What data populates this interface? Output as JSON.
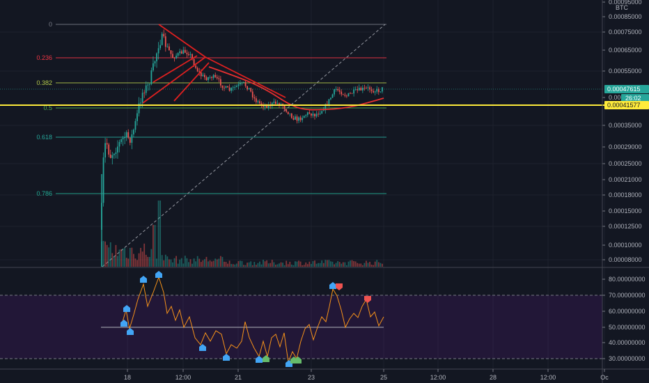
{
  "chart_data": [
    {
      "type": "candlestick",
      "quote_currency": "BTC",
      "x_tick_labels": [
        "18",
        "12:00",
        "21",
        "23",
        "25",
        "12:00",
        "28",
        "12:00",
        "Oc"
      ],
      "y_tick_labels": [
        "0.00095000",
        "0.00085000",
        "0.00075000",
        "0.00065000",
        "0.00055000",
        "0.00045000",
        "0.00035000",
        "0.00029000",
        "0.00025000",
        "0.00021000",
        "0.00018000",
        "0.00015000",
        "0.00012500",
        "0.00010000",
        "0.00008000"
      ],
      "price_labels": {
        "last_price": "0.00047615",
        "countdown": "26:02",
        "horizontal_line": "0.00041577"
      },
      "fib_levels": [
        {
          "label": "0",
          "color": "#787b86"
        },
        {
          "label": "0.236",
          "color": "#f23645"
        },
        {
          "label": "0.382",
          "color": "#b2c84a"
        },
        {
          "label": "0.5",
          "color": "#4caf50"
        },
        {
          "label": "0.618",
          "color": "#26a69a"
        },
        {
          "label": "0.786",
          "color": "#22ab94"
        }
      ],
      "colors": {
        "up": "#26a69a",
        "down": "#ef5350",
        "trendline": "#e02020",
        "horizontal_line": "#ffeb3b",
        "background": "#131722"
      }
    },
    {
      "type": "line",
      "name": "oscillator",
      "y_tick_labels": [
        "80.00000000",
        "70.00000000",
        "60.00000000",
        "50.00000000",
        "40.00000000",
        "30.00000000"
      ],
      "band": [
        30,
        70
      ],
      "midline": 50,
      "colors": {
        "line": "#f7931a",
        "band": "#6a1b9a"
      }
    }
  ]
}
